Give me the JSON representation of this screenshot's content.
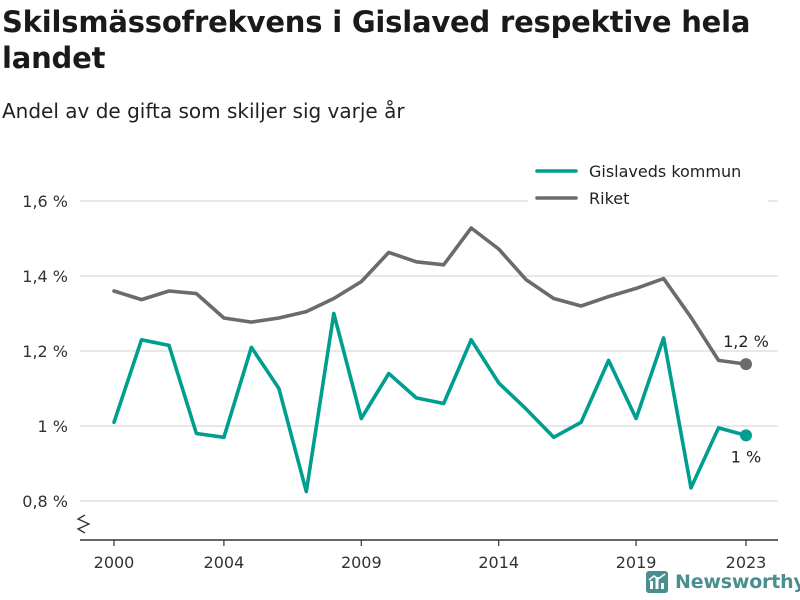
{
  "title": "Skilsmässofrekvens i Gislaved respektive hela landet",
  "subtitle": "Andel av de gifta som skiljer sig varje år",
  "brand": {
    "name": "Newsworthy"
  },
  "colors": {
    "teal": "#009e8f",
    "gray": "#6b6b6f",
    "grid": "#d9d9d9",
    "brand": "#4a8f8f"
  },
  "chart_data": {
    "type": "line",
    "x": [
      2000,
      2001,
      2002,
      2003,
      2004,
      2005,
      2006,
      2007,
      2008,
      2009,
      2010,
      2011,
      2012,
      2013,
      2014,
      2015,
      2016,
      2017,
      2018,
      2019,
      2020,
      2021,
      2022,
      2023
    ],
    "xticks": [
      2000,
      2004,
      2009,
      2014,
      2019,
      2023
    ],
    "xtick_labels": [
      "2000",
      "2004",
      "2009",
      "2014",
      "2019",
      "2023"
    ],
    "yticks": [
      0.8,
      1.0,
      1.2,
      1.4,
      1.6
    ],
    "ytick_labels": [
      "0,8 %",
      "1 %",
      "1,2 %",
      "1,4 %",
      "1,6 %"
    ],
    "ylim": [
      0.7,
      1.68
    ],
    "y_axis_break": true,
    "grid": true,
    "legend": "top-right",
    "series": [
      {
        "name": "Gislaveds kommun",
        "color": "#009e8f",
        "values": [
          1.01,
          1.23,
          1.215,
          0.98,
          0.97,
          1.21,
          1.1,
          0.825,
          1.3,
          1.02,
          1.14,
          1.075,
          1.06,
          1.23,
          1.115,
          1.045,
          0.97,
          1.01,
          1.175,
          1.02,
          1.235,
          0.835,
          0.995,
          0.975
        ],
        "end_label": "1 %"
      },
      {
        "name": "Riket",
        "color": "#6b6b6f",
        "values": [
          1.36,
          1.337,
          1.36,
          1.353,
          1.288,
          1.277,
          1.288,
          1.305,
          1.34,
          1.385,
          1.463,
          1.438,
          1.43,
          1.528,
          1.472,
          1.39,
          1.34,
          1.32,
          1.345,
          1.367,
          1.393,
          1.29,
          1.175,
          1.165
        ],
        "end_label": "1,2 %"
      }
    ]
  }
}
